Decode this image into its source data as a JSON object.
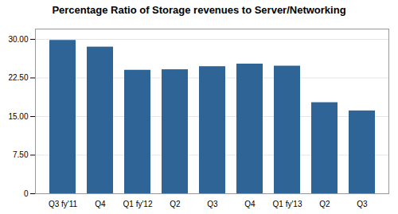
{
  "chart_data": {
    "type": "bar",
    "title": "Percentage Ratio of Storage revenues to Server/Networking",
    "categories": [
      "Q3 fy'11",
      "Q4",
      "Q1 fy'12",
      "Q2",
      "Q3",
      "Q4",
      "Q1 fy'13",
      "Q2",
      "Q3"
    ],
    "values": [
      29.8,
      28.5,
      24.0,
      24.1,
      24.7,
      25.2,
      24.8,
      17.7,
      16.1
    ],
    "color": "#2e6496",
    "ylim": [
      0,
      32
    ],
    "yticks": [
      0,
      {
        "value": 7.5,
        "label": "7.50"
      },
      {
        "value": 15.0,
        "label": "15.00"
      },
      {
        "value": 22.5,
        "label": "22.50"
      },
      {
        "value": 30.0,
        "label": "30.00"
      }
    ],
    "grid": true
  }
}
